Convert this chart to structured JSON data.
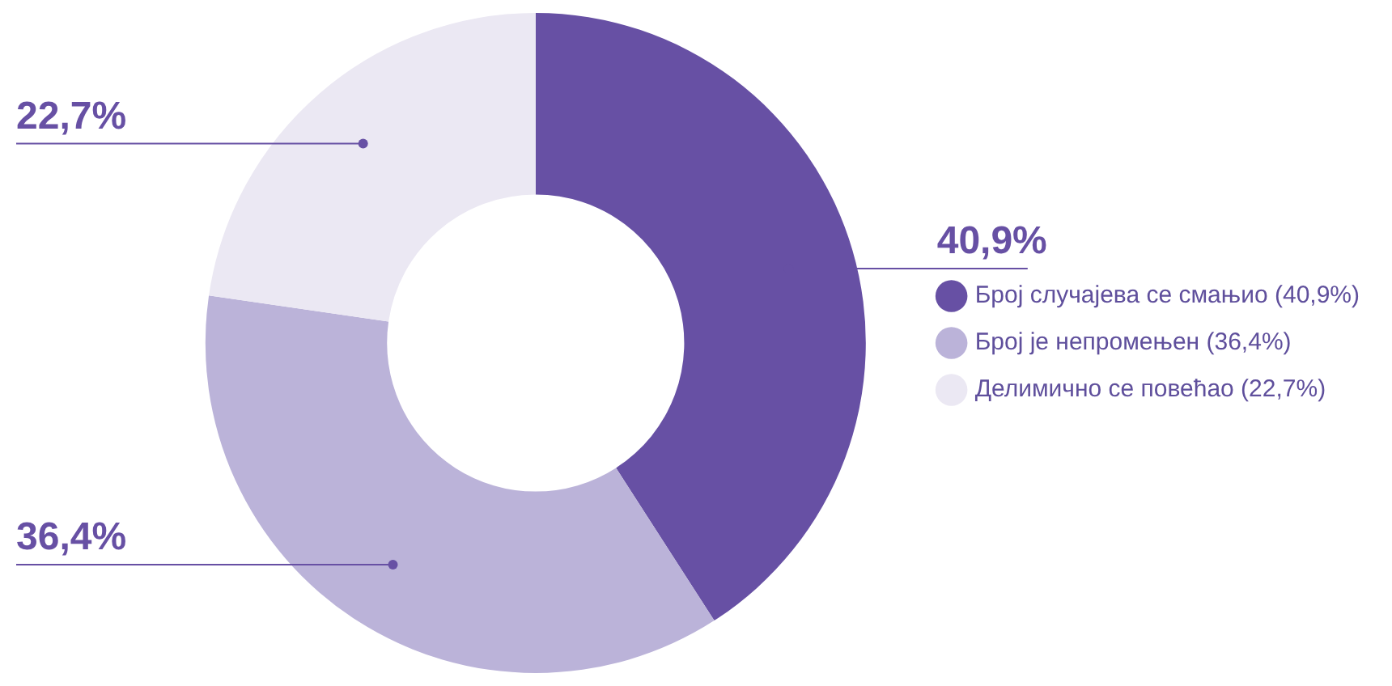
{
  "chart_data": {
    "type": "donut",
    "categories": [
      "Број случајева се смањио (40,9%)",
      "Број је непромењен (36,4%)",
      "Делимично се повећао (22,7%)"
    ],
    "values": [
      40.9,
      36.4,
      22.7
    ],
    "colors": [
      "#6750a4",
      "#bbb3d9",
      "#ebe8f3"
    ],
    "value_labels": [
      "40,9%",
      "36,4%",
      "22,7%"
    ],
    "legend": "right"
  }
}
